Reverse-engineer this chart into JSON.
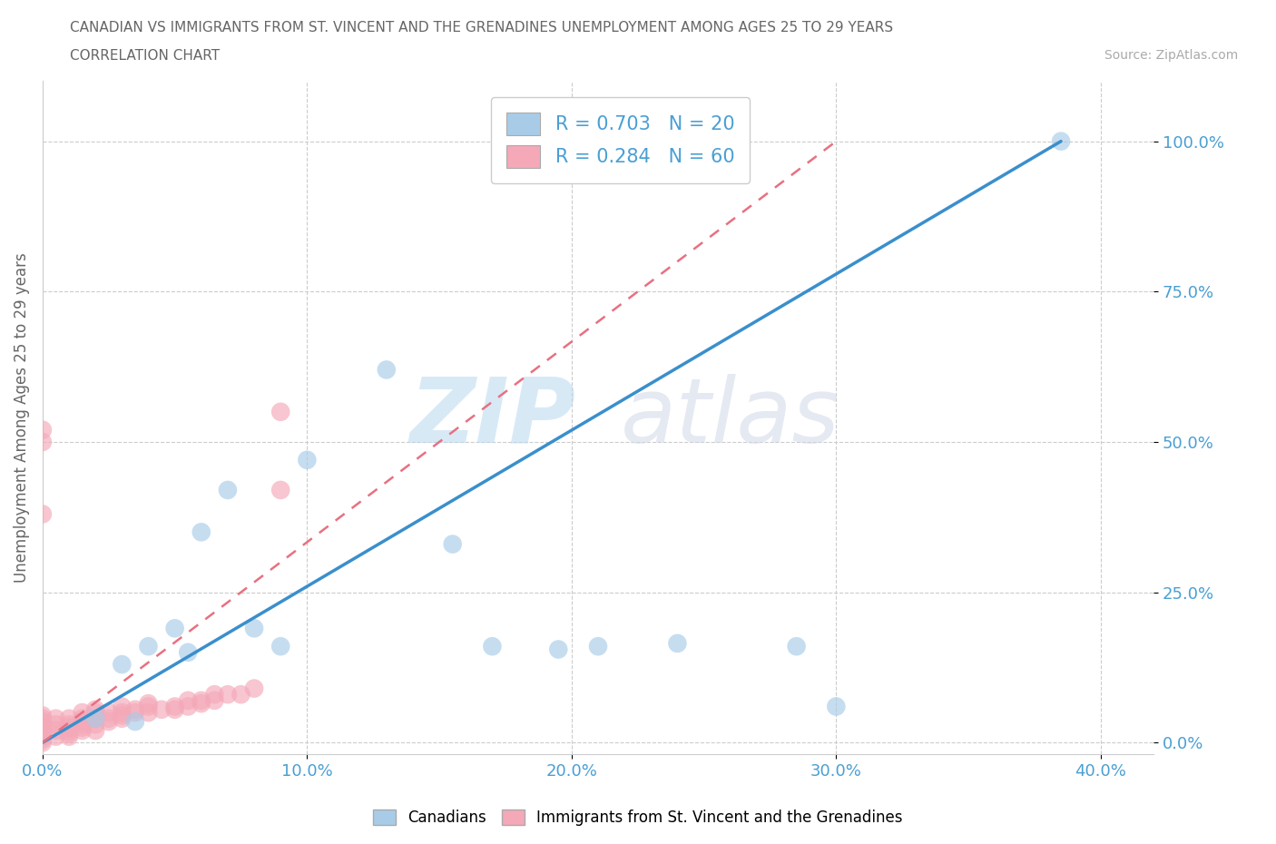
{
  "title_line1": "CANADIAN VS IMMIGRANTS FROM ST. VINCENT AND THE GRENADINES UNEMPLOYMENT AMONG AGES 25 TO 29 YEARS",
  "title_line2": "CORRELATION CHART",
  "source_text": "Source: ZipAtlas.com",
  "ylabel": "Unemployment Among Ages 25 to 29 years",
  "watermark_zip": "ZIP",
  "watermark_atlas": "atlas",
  "xlim": [
    0.0,
    0.42
  ],
  "ylim": [
    -0.02,
    1.1
  ],
  "xtick_labels": [
    "0.0%",
    "10.0%",
    "20.0%",
    "30.0%",
    "40.0%"
  ],
  "xtick_vals": [
    0.0,
    0.1,
    0.2,
    0.3,
    0.4
  ],
  "ytick_labels": [
    "0.0%",
    "25.0%",
    "50.0%",
    "75.0%",
    "100.0%"
  ],
  "ytick_vals": [
    0.0,
    0.25,
    0.5,
    0.75,
    1.0
  ],
  "canadians_R": 0.703,
  "canadians_N": 20,
  "immigrants_R": 0.284,
  "immigrants_N": 60,
  "canadians_color": "#a8cce8",
  "immigrants_color": "#f4a8b8",
  "regression_line_canadian_color": "#3a8fcc",
  "regression_line_immigrant_color": "#e87080",
  "canadians_scatter_x": [
    0.02,
    0.03,
    0.035,
    0.04,
    0.05,
    0.055,
    0.06,
    0.07,
    0.08,
    0.09,
    0.1,
    0.13,
    0.155,
    0.17,
    0.195,
    0.21,
    0.24,
    0.285,
    0.3,
    0.385
  ],
  "canadians_scatter_y": [
    0.04,
    0.13,
    0.035,
    0.16,
    0.19,
    0.15,
    0.35,
    0.42,
    0.19,
    0.16,
    0.47,
    0.62,
    0.33,
    0.16,
    0.155,
    0.16,
    0.165,
    0.16,
    0.06,
    1.0
  ],
  "immigrants_scatter_x": [
    0.0,
    0.0,
    0.0,
    0.0,
    0.0,
    0.0,
    0.0,
    0.0,
    0.0,
    0.0,
    0.005,
    0.005,
    0.005,
    0.005,
    0.01,
    0.01,
    0.01,
    0.01,
    0.01,
    0.01,
    0.015,
    0.015,
    0.015,
    0.015,
    0.015,
    0.015,
    0.02,
    0.02,
    0.02,
    0.02,
    0.02,
    0.025,
    0.025,
    0.025,
    0.03,
    0.03,
    0.03,
    0.03,
    0.035,
    0.035,
    0.04,
    0.04,
    0.04,
    0.045,
    0.05,
    0.05,
    0.055,
    0.055,
    0.06,
    0.06,
    0.065,
    0.065,
    0.07,
    0.075,
    0.08,
    0.09,
    0.09,
    0.0,
    0.0,
    0.0
  ],
  "immigrants_scatter_y": [
    0.0,
    0.005,
    0.01,
    0.015,
    0.02,
    0.025,
    0.03,
    0.035,
    0.04,
    0.045,
    0.01,
    0.02,
    0.03,
    0.04,
    0.01,
    0.015,
    0.02,
    0.025,
    0.03,
    0.04,
    0.02,
    0.025,
    0.03,
    0.035,
    0.04,
    0.05,
    0.02,
    0.03,
    0.04,
    0.05,
    0.055,
    0.035,
    0.04,
    0.05,
    0.04,
    0.045,
    0.05,
    0.06,
    0.05,
    0.055,
    0.05,
    0.06,
    0.065,
    0.055,
    0.055,
    0.06,
    0.06,
    0.07,
    0.065,
    0.07,
    0.07,
    0.08,
    0.08,
    0.08,
    0.09,
    0.42,
    0.55,
    0.38,
    0.5,
    0.52
  ],
  "grid_color": "#cccccc",
  "background_color": "#ffffff",
  "title_color": "#666666",
  "axis_label_color": "#666666",
  "tick_color": "#4a9fd4",
  "legend_R_color": "#4a9fd4"
}
